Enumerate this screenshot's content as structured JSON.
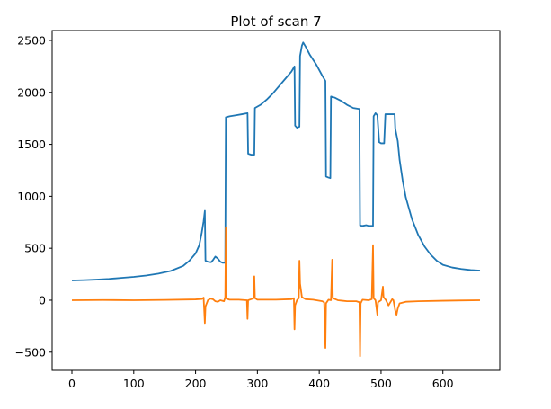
{
  "chart_data": {
    "type": "line",
    "title": "Plot of scan 7",
    "xlabel": "",
    "ylabel": "",
    "xlim": [
      -32,
      692
    ],
    "ylim": [
      -675,
      2595
    ],
    "x_ticks": [
      0,
      100,
      200,
      300,
      400,
      500,
      600
    ],
    "y_ticks": [
      -500,
      0,
      500,
      1000,
      1500,
      2000,
      2500
    ],
    "grid": false,
    "series": [
      {
        "color": "#1f77b4",
        "points": [
          [
            0,
            190
          ],
          [
            20,
            193
          ],
          [
            40,
            198
          ],
          [
            60,
            205
          ],
          [
            80,
            215
          ],
          [
            100,
            225
          ],
          [
            120,
            238
          ],
          [
            140,
            256
          ],
          [
            160,
            282
          ],
          [
            180,
            330
          ],
          [
            190,
            380
          ],
          [
            200,
            450
          ],
          [
            206,
            530
          ],
          [
            210,
            650
          ],
          [
            213,
            760
          ],
          [
            215,
            860
          ],
          [
            216,
            380
          ],
          [
            220,
            370
          ],
          [
            225,
            365
          ],
          [
            228,
            385
          ],
          [
            232,
            420
          ],
          [
            236,
            400
          ],
          [
            240,
            370
          ],
          [
            244,
            360
          ],
          [
            248,
            360
          ],
          [
            249,
            1760
          ],
          [
            255,
            1770
          ],
          [
            265,
            1780
          ],
          [
            275,
            1790
          ],
          [
            284,
            1800
          ],
          [
            285,
            1410
          ],
          [
            290,
            1400
          ],
          [
            295,
            1400
          ],
          [
            296,
            1850
          ],
          [
            305,
            1880
          ],
          [
            315,
            1930
          ],
          [
            325,
            1990
          ],
          [
            335,
            2060
          ],
          [
            345,
            2130
          ],
          [
            355,
            2200
          ],
          [
            360,
            2250
          ],
          [
            361,
            1680
          ],
          [
            364,
            1660
          ],
          [
            368,
            1670
          ],
          [
            369,
            2350
          ],
          [
            372,
            2450
          ],
          [
            374,
            2480
          ],
          [
            378,
            2440
          ],
          [
            385,
            2360
          ],
          [
            395,
            2270
          ],
          [
            405,
            2160
          ],
          [
            410,
            2110
          ],
          [
            411,
            1190
          ],
          [
            415,
            1180
          ],
          [
            418,
            1175
          ],
          [
            419,
            1960
          ],
          [
            425,
            1950
          ],
          [
            435,
            1920
          ],
          [
            445,
            1880
          ],
          [
            455,
            1850
          ],
          [
            465,
            1840
          ],
          [
            466,
            720
          ],
          [
            470,
            715
          ],
          [
            476,
            722
          ],
          [
            480,
            715
          ],
          [
            487,
            715
          ],
          [
            488,
            1770
          ],
          [
            491,
            1800
          ],
          [
            494,
            1780
          ],
          [
            497,
            1520
          ],
          [
            500,
            1510
          ],
          [
            505,
            1510
          ],
          [
            507,
            1790
          ],
          [
            510,
            1790
          ],
          [
            518,
            1790
          ],
          [
            522,
            1790
          ],
          [
            523,
            1650
          ],
          [
            527,
            1530
          ],
          [
            530,
            1350
          ],
          [
            535,
            1150
          ],
          [
            540,
            990
          ],
          [
            550,
            780
          ],
          [
            560,
            630
          ],
          [
            570,
            520
          ],
          [
            580,
            440
          ],
          [
            590,
            380
          ],
          [
            600,
            340
          ],
          [
            615,
            315
          ],
          [
            630,
            300
          ],
          [
            645,
            290
          ],
          [
            660,
            285
          ]
        ]
      },
      {
        "color": "#ff7f0e",
        "points": [
          [
            0,
            0
          ],
          [
            50,
            2
          ],
          [
            100,
            0
          ],
          [
            150,
            3
          ],
          [
            200,
            8
          ],
          [
            210,
            12
          ],
          [
            213,
            25
          ],
          [
            215,
            -220
          ],
          [
            216,
            -60
          ],
          [
            220,
            0
          ],
          [
            224,
            15
          ],
          [
            228,
            10
          ],
          [
            232,
            -10
          ],
          [
            236,
            -15
          ],
          [
            240,
            0
          ],
          [
            246,
            -10
          ],
          [
            248,
            30
          ],
          [
            249,
            700
          ],
          [
            250,
            15
          ],
          [
            255,
            5
          ],
          [
            270,
            5
          ],
          [
            283,
            0
          ],
          [
            284,
            -180
          ],
          [
            285,
            0
          ],
          [
            290,
            10
          ],
          [
            294,
            20
          ],
          [
            295,
            230
          ],
          [
            296,
            20
          ],
          [
            300,
            5
          ],
          [
            330,
            5
          ],
          [
            355,
            10
          ],
          [
            359,
            20
          ],
          [
            360,
            -280
          ],
          [
            361,
            -50
          ],
          [
            364,
            0
          ],
          [
            367,
            20
          ],
          [
            368,
            380
          ],
          [
            369,
            160
          ],
          [
            372,
            30
          ],
          [
            378,
            10
          ],
          [
            390,
            5
          ],
          [
            405,
            -10
          ],
          [
            408,
            -20
          ],
          [
            410,
            -460
          ],
          [
            411,
            -30
          ],
          [
            415,
            5
          ],
          [
            419,
            0
          ],
          [
            421,
            390
          ],
          [
            422,
            20
          ],
          [
            430,
            0
          ],
          [
            445,
            -10
          ],
          [
            460,
            -10
          ],
          [
            465,
            -20
          ],
          [
            466,
            -540
          ],
          [
            467,
            -30
          ],
          [
            470,
            5
          ],
          [
            480,
            0
          ],
          [
            485,
            10
          ],
          [
            487,
            530
          ],
          [
            488,
            20
          ],
          [
            491,
            0
          ],
          [
            494,
            -140
          ],
          [
            495,
            -20
          ],
          [
            500,
            0
          ],
          [
            503,
            130
          ],
          [
            504,
            30
          ],
          [
            508,
            0
          ],
          [
            512,
            -50
          ],
          [
            515,
            -20
          ],
          [
            518,
            10
          ],
          [
            520,
            0
          ],
          [
            523,
            -100
          ],
          [
            525,
            -140
          ],
          [
            527,
            -80
          ],
          [
            530,
            -30
          ],
          [
            540,
            -15
          ],
          [
            560,
            -10
          ],
          [
            600,
            -5
          ],
          [
            660,
            0
          ]
        ]
      }
    ]
  }
}
